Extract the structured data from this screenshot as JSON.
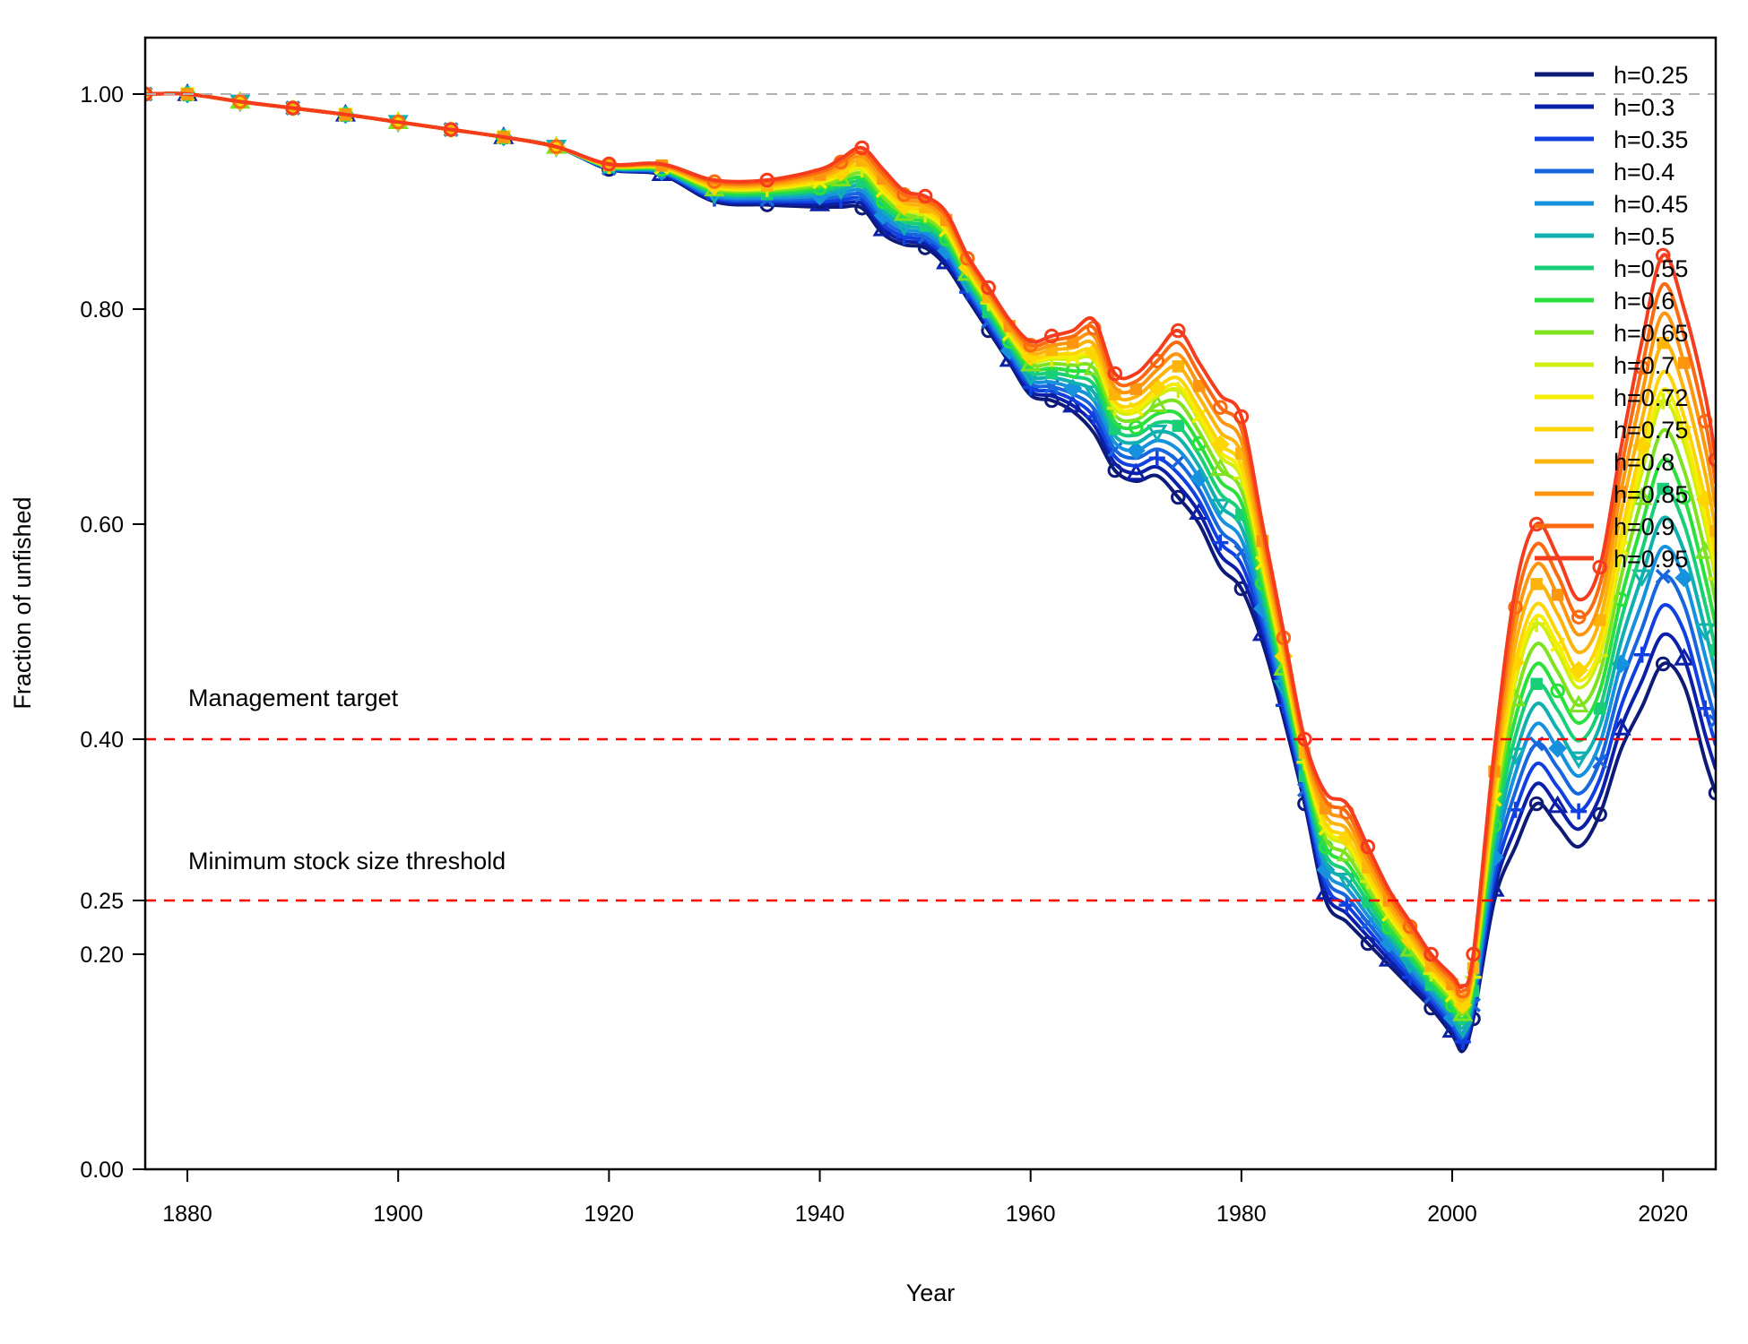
{
  "chart_data": {
    "type": "line",
    "title": "",
    "xlabel": "Year",
    "ylabel": "Fraction of unfished",
    "xlim": [
      1876,
      2025
    ],
    "ylim": [
      0,
      1.05
    ],
    "x_ticks": [
      "1880",
      "1900",
      "1920",
      "1940",
      "1960",
      "1980",
      "2000",
      "2020"
    ],
    "y_ticks": [
      "0.00",
      "0.20",
      "0.25",
      "0.40",
      "0.60",
      "0.80",
      "1.00"
    ],
    "grid": false,
    "legend_position": "top-right",
    "reference_lines": [
      {
        "y": 1.0,
        "style": "dashed",
        "color": "#b0b0b0"
      },
      {
        "y": 0.4,
        "style": "dashed",
        "color": "#ff0000",
        "label": "Management target"
      },
      {
        "y": 0.25,
        "style": "dashed",
        "color": "#ff0000",
        "label": "Minimum stock size threshold"
      }
    ],
    "series": [
      {
        "name": "h=0.25",
        "color": "#0d1a78",
        "h": 0.25
      },
      {
        "name": "h=0.3",
        "color": "#0b1fa8",
        "h": 0.3
      },
      {
        "name": "h=0.35",
        "color": "#1140e0",
        "h": 0.35
      },
      {
        "name": "h=0.4",
        "color": "#1866dd",
        "h": 0.4
      },
      {
        "name": "h=0.45",
        "color": "#1691dd",
        "h": 0.45
      },
      {
        "name": "h=0.5",
        "color": "#10b0b0",
        "h": 0.5
      },
      {
        "name": "h=0.55",
        "color": "#18cf78",
        "h": 0.55
      },
      {
        "name": "h=0.6",
        "color": "#2ae03a",
        "h": 0.6
      },
      {
        "name": "h=0.65",
        "color": "#7ee21e",
        "h": 0.65
      },
      {
        "name": "h=0.7",
        "color": "#d2ee10",
        "h": 0.7
      },
      {
        "name": "h=0.72",
        "color": "#f6ee00",
        "h": 0.72
      },
      {
        "name": "h=0.75",
        "color": "#fdd500",
        "h": 0.75
      },
      {
        "name": "h=0.8",
        "color": "#fdb40a",
        "h": 0.8
      },
      {
        "name": "h=0.85",
        "color": "#fd960f",
        "h": 0.85
      },
      {
        "name": "h=0.9",
        "color": "#fb6a10",
        "h": 0.9
      },
      {
        "name": "h=0.95",
        "color": "#f53c1c",
        "h": 0.95
      }
    ],
    "trajectory_low_h": {
      "x": [
        1876,
        1880,
        1885,
        1890,
        1895,
        1900,
        1905,
        1910,
        1915,
        1920,
        1925,
        1930,
        1935,
        1940,
        1942,
        1944,
        1946,
        1948,
        1950,
        1952,
        1954,
        1956,
        1958,
        1960,
        1962,
        1964,
        1966,
        1968,
        1970,
        1972,
        1974,
        1976,
        1978,
        1980,
        1982,
        1984,
        1986,
        1988,
        1990,
        1992,
        1994,
        1996,
        1998,
        2000,
        2001,
        2002,
        2004,
        2006,
        2008,
        2010,
        2012,
        2014,
        2016,
        2018,
        2020,
        2022,
        2024,
        2025
      ],
      "y": [
        1.0,
        1.0,
        0.993,
        0.987,
        0.981,
        0.974,
        0.967,
        0.96,
        0.951,
        0.93,
        0.925,
        0.9,
        0.897,
        0.895,
        0.895,
        0.894,
        0.87,
        0.86,
        0.857,
        0.84,
        0.81,
        0.78,
        0.75,
        0.72,
        0.715,
        0.705,
        0.685,
        0.65,
        0.64,
        0.645,
        0.625,
        0.6,
        0.56,
        0.54,
        0.49,
        0.42,
        0.34,
        0.25,
        0.23,
        0.21,
        0.19,
        0.17,
        0.15,
        0.125,
        0.11,
        0.14,
        0.25,
        0.3,
        0.34,
        0.32,
        0.3,
        0.33,
        0.39,
        0.43,
        0.47,
        0.45,
        0.38,
        0.35
      ]
    },
    "trajectory_high_h": {
      "x": [
        1876,
        1880,
        1885,
        1890,
        1895,
        1900,
        1905,
        1910,
        1915,
        1920,
        1925,
        1930,
        1935,
        1940,
        1942,
        1944,
        1946,
        1948,
        1950,
        1952,
        1954,
        1956,
        1958,
        1960,
        1962,
        1964,
        1966,
        1968,
        1970,
        1972,
        1974,
        1976,
        1978,
        1980,
        1982,
        1984,
        1986,
        1988,
        1990,
        1992,
        1994,
        1996,
        1998,
        2000,
        2001,
        2002,
        2004,
        2006,
        2008,
        2010,
        2012,
        2014,
        2016,
        2018,
        2020,
        2022,
        2024,
        2025
      ],
      "y": [
        1.0,
        1.0,
        0.993,
        0.987,
        0.981,
        0.974,
        0.967,
        0.96,
        0.951,
        0.935,
        0.935,
        0.92,
        0.92,
        0.93,
        0.94,
        0.95,
        0.93,
        0.91,
        0.905,
        0.89,
        0.85,
        0.82,
        0.79,
        0.77,
        0.775,
        0.78,
        0.79,
        0.74,
        0.74,
        0.76,
        0.78,
        0.75,
        0.72,
        0.7,
        0.6,
        0.5,
        0.4,
        0.35,
        0.34,
        0.3,
        0.26,
        0.23,
        0.2,
        0.18,
        0.17,
        0.2,
        0.39,
        0.54,
        0.6,
        0.57,
        0.53,
        0.56,
        0.67,
        0.77,
        0.85,
        0.8,
        0.72,
        0.66
      ]
    },
    "annotations": [
      "Management target",
      "Minimum stock size threshold"
    ]
  }
}
